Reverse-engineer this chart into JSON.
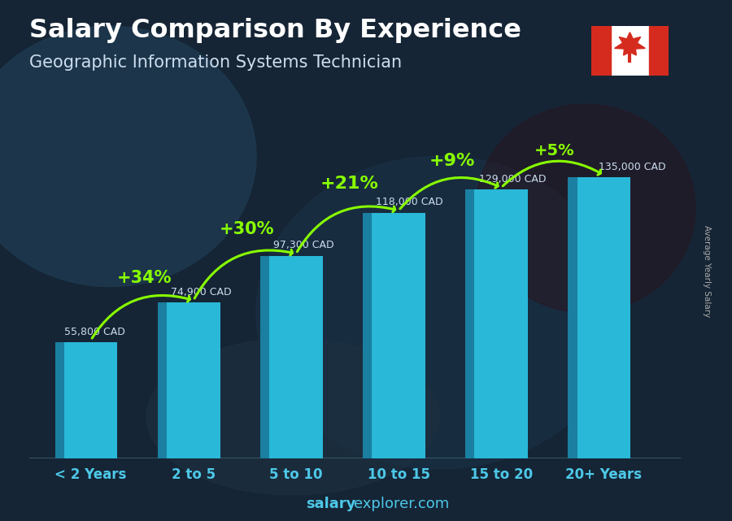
{
  "title1": "Salary Comparison By Experience",
  "title2": "Geographic Information Systems Technician",
  "categories": [
    "< 2 Years",
    "2 to 5",
    "5 to 10",
    "10 to 15",
    "15 to 20",
    "20+ Years"
  ],
  "values": [
    55800,
    74900,
    97300,
    118000,
    129000,
    135000
  ],
  "labels": [
    "55,800 CAD",
    "74,900 CAD",
    "97,300 CAD",
    "118,000 CAD",
    "129,000 CAD",
    "135,000 CAD"
  ],
  "pct_labels": [
    "+34%",
    "+30%",
    "+21%",
    "+9%",
    "+5%"
  ],
  "bar_color_face": "#29B8D8",
  "bar_color_side": "#1A7FA0",
  "bar_color_top": "#5DDEF5",
  "bg_color": "#1C2E3D",
  "title1_color": "#FFFFFF",
  "title2_color": "#CCDDEE",
  "label_color": "#CCDDEE",
  "pct_color": "#88FF00",
  "xtick_color": "#4DC8E8",
  "ylabel_text": "Average Yearly Salary",
  "footer_bold": "salary",
  "footer_rest": "explorer.com",
  "ylim": [
    0,
    175000
  ],
  "bar_width": 0.52,
  "depth": 0.09
}
